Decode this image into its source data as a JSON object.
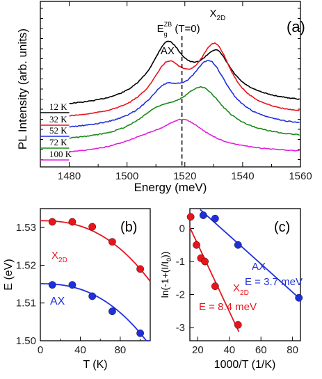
{
  "chart_data": [
    {
      "panel": "(a)",
      "type": "line",
      "xlabel": "Energy (meV)",
      "ylabel": "PL Intensity (arb. units)",
      "xlim": [
        1470,
        1560
      ],
      "x_ticks": [
        1480,
        1500,
        1520,
        1540,
        1560
      ],
      "marker_line": {
        "x": 1519,
        "label_main": "E",
        "label_sub": "g",
        "label_sup": "ZB",
        "label_rest": " (T=0)"
      },
      "annotations": [
        {
          "text": "AX",
          "x": 1514
        },
        {
          "text": "X",
          "sub": "2D",
          "x": 1531
        }
      ],
      "series": [
        {
          "name": "12 K",
          "color": "#000000"
        },
        {
          "name": "32 K",
          "color": "#e8141c"
        },
        {
          "name": "52 K",
          "color": "#1f2fdc"
        },
        {
          "name": "72 K",
          "color": "#178a17"
        },
        {
          "name": "100 K",
          "color": "#e11ee1"
        }
      ]
    },
    {
      "panel": "(b)",
      "type": "scatter",
      "xlabel": "T (K)",
      "ylabel": "E (eV)",
      "xlim": [
        0,
        110
      ],
      "ylim": [
        1.5,
        1.535
      ],
      "x_ticks": [
        0,
        40,
        80
      ],
      "y_ticks": [
        "1.50",
        "1.51",
        "1.52",
        "1.53"
      ],
      "series": [
        {
          "name": "X",
          "sub": "2D",
          "color": "#e8141c",
          "x": [
            12,
            32,
            52,
            72,
            100
          ],
          "y": [
            1.5315,
            1.5315,
            1.5302,
            1.5262,
            1.519
          ]
        },
        {
          "name": "AX",
          "color": "#1f2fdc",
          "x": [
            12,
            32,
            52,
            72,
            100
          ],
          "y": [
            1.5148,
            1.5148,
            1.5118,
            1.5078,
            1.502
          ]
        }
      ]
    },
    {
      "panel": "(c)",
      "type": "scatter",
      "xlabel": "1000/T (1/K)",
      "ylabel": "ln(-1+(I/I",
      "ylabel_sub": "0",
      "ylabel_end": "))",
      "xlim": [
        15,
        85
      ],
      "ylim": [
        -3.4,
        0.6
      ],
      "x_ticks": [
        20,
        40,
        60,
        80
      ],
      "y_ticks": [
        0,
        -1,
        -2,
        -3
      ],
      "series": [
        {
          "name": "X",
          "sub": "2D",
          "color": "#e8141c",
          "label": "E = 8.4 meV",
          "x": [
            15.5,
            19.2,
            22,
            24.5,
            31,
            45.5
          ],
          "y": [
            0.35,
            -0.5,
            -0.9,
            -1.0,
            -1.75,
            -2.92
          ]
        },
        {
          "name": "AX",
          "color": "#1f2fdc",
          "label": "E = 3.7 meV",
          "x": [
            23.5,
            31,
            45.5,
            84
          ],
          "y": [
            0.4,
            0.3,
            -0.5,
            -2.1
          ]
        }
      ]
    }
  ]
}
